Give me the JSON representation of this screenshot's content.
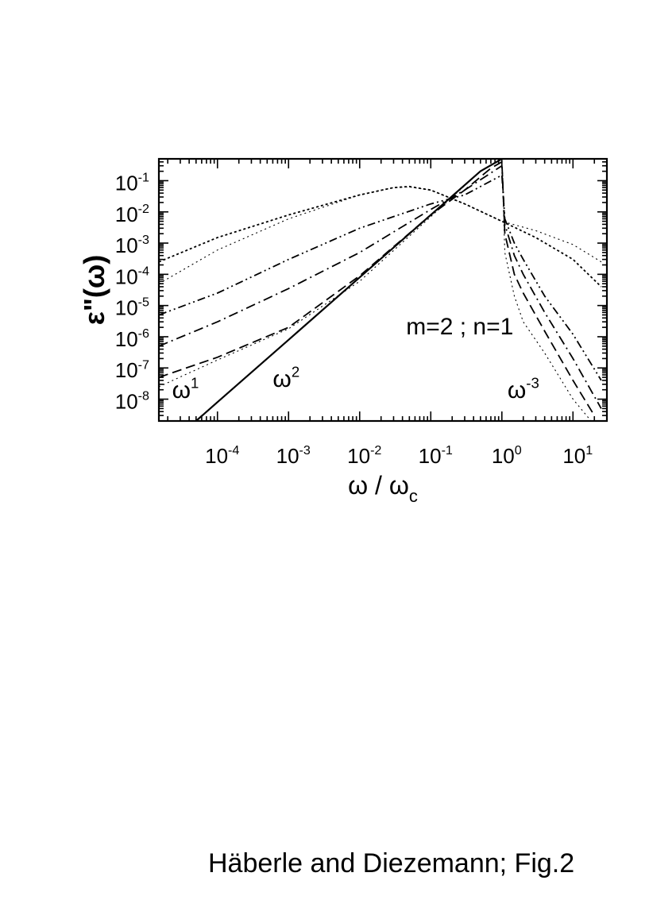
{
  "chart_data": {
    "type": "line",
    "x_scale": "log",
    "y_scale": "log",
    "xlim": [
      1.5e-05,
      30
    ],
    "ylim": [
      2e-09,
      0.5
    ],
    "xlabel": "ω / ωc",
    "xlabel_parts": {
      "main": "ω / ω",
      "sub": "c"
    },
    "ylabel": "ε''(ω)",
    "ylabel_parts": {
      "main": "ε\"(ω)"
    },
    "x_ticks": [
      {
        "base": "10",
        "exp": "-4",
        "value": 0.0001
      },
      {
        "base": "10",
        "exp": "-3",
        "value": 0.001
      },
      {
        "base": "10",
        "exp": "-2",
        "value": 0.01
      },
      {
        "base": "10",
        "exp": "-1",
        "value": 0.1
      },
      {
        "base": "10",
        "exp": "0",
        "value": 1
      },
      {
        "base": "10",
        "exp": "1",
        "value": 10
      }
    ],
    "y_ticks": [
      {
        "base": "10",
        "exp": "-1",
        "value": 0.1
      },
      {
        "base": "10",
        "exp": "-2",
        "value": 0.01
      },
      {
        "base": "10",
        "exp": "-3",
        "value": 0.001
      },
      {
        "base": "10",
        "exp": "-4",
        "value": 0.0001
      },
      {
        "base": "10",
        "exp": "-5",
        "value": 1e-05
      },
      {
        "base": "10",
        "exp": "-6",
        "value": 1e-06
      },
      {
        "base": "10",
        "exp": "-7",
        "value": 1e-07
      },
      {
        "base": "10",
        "exp": "-8",
        "value": 1e-08
      }
    ],
    "annotations": [
      {
        "base": "m=2 ; n=1",
        "exp": "",
        "x": 0.045,
        "y": 1.2e-06,
        "size": 30
      },
      {
        "base": "ω",
        "exp": "1",
        "x": 2.3e-05,
        "y": 1.1e-08,
        "size": 30
      },
      {
        "base": "ω",
        "exp": "2",
        "x": 0.0006,
        "y": 2.5e-08,
        "size": 30
      },
      {
        "base": "ω",
        "exp": "-3",
        "x": 1.2,
        "y": 1.1e-08,
        "size": 30
      }
    ],
    "series": [
      {
        "style": "solid",
        "color": "#000000",
        "width": 2.2,
        "x": [
          5e-05,
          0.0001,
          0.001,
          0.01,
          0.1,
          0.5,
          1.0
        ],
        "y": [
          2e-09,
          8e-09,
          8e-07,
          8e-05,
          0.008,
          0.2,
          0.5
        ]
      },
      {
        "style": "dashed",
        "color": "#000000",
        "width": 1.8,
        "x": [
          1.5e-05,
          0.0001,
          0.001,
          0.01,
          0.1,
          0.3,
          0.7,
          1.0,
          1.1,
          1.5,
          2,
          4,
          10,
          20
        ],
        "y": [
          5e-08,
          2.2e-07,
          2e-06,
          9e-05,
          0.008,
          0.05,
          0.25,
          0.4,
          0.002,
          0.0001,
          2.5e-05,
          1.5e-06,
          4e-08,
          3e-09
        ]
      },
      {
        "style": "dashdot",
        "color": "#000000",
        "width": 1.8,
        "x": [
          1.5e-05,
          0.0001,
          0.001,
          0.01,
          0.1,
          0.3,
          1.0,
          1.1,
          1.5,
          2,
          4,
          10,
          25
        ],
        "y": [
          5e-07,
          3e-06,
          3.5e-05,
          0.0005,
          0.012,
          0.05,
          0.3,
          0.004,
          0.0004,
          0.0001,
          6e-06,
          2e-07,
          5e-09
        ]
      },
      {
        "style": "dashdotdot",
        "color": "#000000",
        "width": 1.8,
        "x": [
          1.5e-05,
          0.0001,
          0.001,
          0.01,
          0.1,
          0.3,
          1.0,
          1.1,
          1.5,
          2,
          4,
          10,
          25
        ],
        "y": [
          5e-06,
          2.5e-05,
          0.0003,
          0.003,
          0.018,
          0.035,
          0.15,
          0.006,
          0.001,
          0.0003,
          2e-05,
          1.2e-06,
          4e-08
        ]
      },
      {
        "style": "dotted-dense",
        "color": "#000000",
        "width": 1.8,
        "x": [
          1.5e-05,
          0.0001,
          0.001,
          0.01,
          0.03,
          0.05,
          0.1,
          0.3,
          1,
          3,
          10,
          25
        ],
        "y": [
          0.00025,
          0.0015,
          0.008,
          0.035,
          0.06,
          0.065,
          0.05,
          0.018,
          0.005,
          0.0015,
          0.0003,
          4e-05
        ]
      },
      {
        "style": "dotted-thin",
        "color": "#000000",
        "width": 1.1,
        "x": [
          1.5e-05,
          0.0001,
          0.001,
          0.01,
          0.03,
          0.05,
          0.1,
          0.3,
          1,
          3,
          10,
          25
        ],
        "y": [
          5e-05,
          0.0006,
          0.006,
          0.035,
          0.06,
          0.063,
          0.05,
          0.018,
          0.005,
          0.0025,
          0.0009,
          0.00025
        ]
      },
      {
        "style": "dotted-thin",
        "color": "#000000",
        "width": 1.1,
        "x": [
          1.5e-05,
          0.0001,
          0.001,
          0.01,
          0.1,
          0.5,
          1.0,
          1.1,
          1.5,
          2,
          4,
          10,
          18
        ],
        "y": [
          2.5e-08,
          1.8e-07,
          1.8e-06,
          6e-05,
          0.007,
          0.2,
          0.5,
          0.0005,
          2e-05,
          3e-06,
          3e-07,
          1e-08,
          2e-09
        ]
      }
    ]
  },
  "caption": "Häberle and Diezemann; Fig.2"
}
